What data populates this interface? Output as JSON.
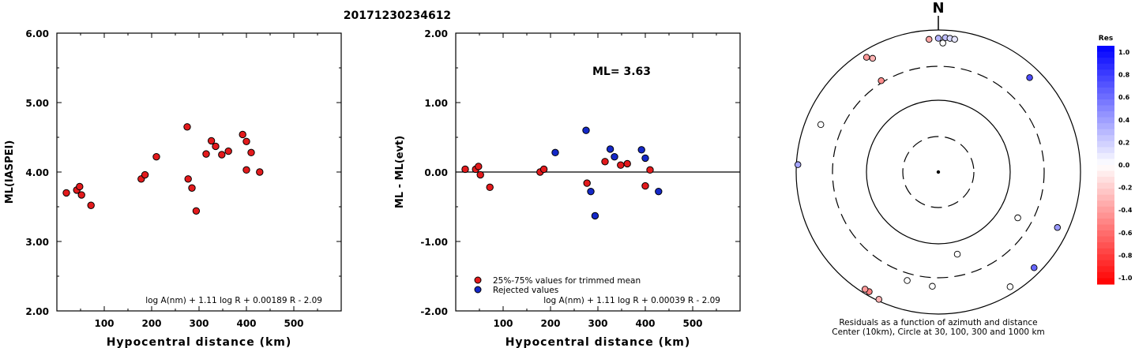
{
  "title": "20171230234612",
  "chart_data": [
    {
      "type": "scatter",
      "id": "ml-vs-distance",
      "xlabel": "Hypocentral distance (km)",
      "ylabel": "ML(IASPEI)",
      "xlim": [
        0,
        600
      ],
      "ylim": [
        2.0,
        6.0
      ],
      "xticks": [
        "100",
        "200",
        "300",
        "400",
        "500"
      ],
      "yticks": [
        "2.00",
        "3.00",
        "4.00",
        "5.00",
        "6.00"
      ],
      "formula": "log A(nm) + 1.11 log R + 0.00189 R - 2.09",
      "points": [
        {
          "x": 20,
          "y": 3.7
        },
        {
          "x": 42,
          "y": 3.74
        },
        {
          "x": 48,
          "y": 3.79
        },
        {
          "x": 52,
          "y": 3.67
        },
        {
          "x": 72,
          "y": 3.52
        },
        {
          "x": 178,
          "y": 3.9
        },
        {
          "x": 186,
          "y": 3.96
        },
        {
          "x": 210,
          "y": 4.22
        },
        {
          "x": 275,
          "y": 4.65
        },
        {
          "x": 277,
          "y": 3.9
        },
        {
          "x": 285,
          "y": 3.77
        },
        {
          "x": 294,
          "y": 3.44
        },
        {
          "x": 315,
          "y": 4.26
        },
        {
          "x": 326,
          "y": 4.45
        },
        {
          "x": 335,
          "y": 4.37
        },
        {
          "x": 348,
          "y": 4.25
        },
        {
          "x": 362,
          "y": 4.3
        },
        {
          "x": 392,
          "y": 4.54
        },
        {
          "x": 400,
          "y": 4.44
        },
        {
          "x": 400,
          "y": 4.03
        },
        {
          "x": 410,
          "y": 4.28
        },
        {
          "x": 428,
          "y": 4.0
        }
      ]
    },
    {
      "type": "scatter",
      "id": "residual-vs-distance",
      "xlabel": "Hypocentral distance (km)",
      "ylabel": "ML - ML(evt)",
      "xlim": [
        0,
        600
      ],
      "ylim": [
        -2.0,
        2.0
      ],
      "xticks": [
        "100",
        "200",
        "300",
        "400",
        "500"
      ],
      "yticks": [
        "-2.00",
        "-1.00",
        "0.00",
        "1.00",
        "2.00"
      ],
      "annotation": "ML= 3.63",
      "formula": "log A(nm) + 1.11 log R + 0.00039 R - 2.09",
      "legend": [
        {
          "label": "25%-75% values for trimmed mean",
          "color": "#e31a1c"
        },
        {
          "label": "Rejected values",
          "color": "#1428c8"
        }
      ],
      "series": [
        {
          "color": "#e31a1c",
          "points": [
            {
              "x": 20,
              "y": 0.04
            },
            {
              "x": 42,
              "y": 0.04
            },
            {
              "x": 48,
              "y": 0.08
            },
            {
              "x": 52,
              "y": -0.04
            },
            {
              "x": 72,
              "y": -0.22
            },
            {
              "x": 178,
              "y": 0.0
            },
            {
              "x": 186,
              "y": 0.04
            },
            {
              "x": 277,
              "y": -0.16
            },
            {
              "x": 315,
              "y": 0.15
            },
            {
              "x": 348,
              "y": 0.1
            },
            {
              "x": 362,
              "y": 0.12
            },
            {
              "x": 400,
              "y": -0.2
            },
            {
              "x": 410,
              "y": 0.03
            }
          ]
        },
        {
          "color": "#1428c8",
          "points": [
            {
              "x": 210,
              "y": 0.28
            },
            {
              "x": 275,
              "y": 0.6
            },
            {
              "x": 285,
              "y": -0.28
            },
            {
              "x": 294,
              "y": -0.63
            },
            {
              "x": 326,
              "y": 0.33
            },
            {
              "x": 335,
              "y": 0.22
            },
            {
              "x": 392,
              "y": 0.32
            },
            {
              "x": 400,
              "y": 0.2
            },
            {
              "x": 428,
              "y": -0.28
            }
          ]
        }
      ]
    },
    {
      "type": "scatter",
      "id": "azimuth-plot",
      "north_label": "N",
      "caption_line1": "Residuals as a function of azimuth and distance",
      "caption_line2": "Center (10km), Circle at 30, 100, 300 and 1000 km",
      "colorbar_title": "Res",
      "colorbar_ticks": [
        "1.0",
        "0.8",
        "0.6",
        "0.4",
        "0.2",
        "0.0",
        "-0.2",
        "-0.4",
        "-0.6",
        "-0.8",
        "-1.0"
      ],
      "stations": [
        {
          "azimuth": 3,
          "distance": 780,
          "res": 0.25
        },
        {
          "azimuth": 5,
          "distance": 770,
          "res": 0.15
        },
        {
          "azimuth": 7,
          "distance": 760,
          "res": 0.1
        },
        {
          "azimuth": 0,
          "distance": 760,
          "res": 0.3
        },
        {
          "azimuth": -4,
          "distance": 740,
          "res": -0.35
        },
        {
          "azimuth": 2,
          "distance": 650,
          "res": 0.0
        },
        {
          "azimuth": -32,
          "distance": 800,
          "res": -0.4
        },
        {
          "azimuth": -30,
          "distance": 700,
          "res": -0.3
        },
        {
          "azimuth": -32,
          "distance": 320,
          "res": -0.45
        },
        {
          "azimuth": 44,
          "distance": 700,
          "res": 0.7
        },
        {
          "azimuth": -68,
          "distance": 600,
          "res": 0.0
        },
        {
          "azimuth": -87,
          "distance": 950,
          "res": 0.35
        },
        {
          "azimuth": 120,
          "distance": 190,
          "res": 0.0
        },
        {
          "azimuth": 167,
          "distance": 150,
          "res": 0.0
        },
        {
          "azimuth": 196,
          "distance": 380,
          "res": 0.0
        },
        {
          "azimuth": 183,
          "distance": 400,
          "res": 0.0
        },
        {
          "azimuth": 115,
          "distance": 700,
          "res": 0.4
        },
        {
          "azimuth": 135,
          "distance": 800,
          "res": 0.6
        },
        {
          "azimuth": 148,
          "distance": 800,
          "res": 0.0
        },
        {
          "azimuth": 210,
          "distance": 880,
          "res": -0.5
        },
        {
          "azimuth": 212,
          "distance": 880,
          "res": -0.4
        },
        {
          "azimuth": 205,
          "distance": 950,
          "res": -0.3
        }
      ]
    }
  ]
}
